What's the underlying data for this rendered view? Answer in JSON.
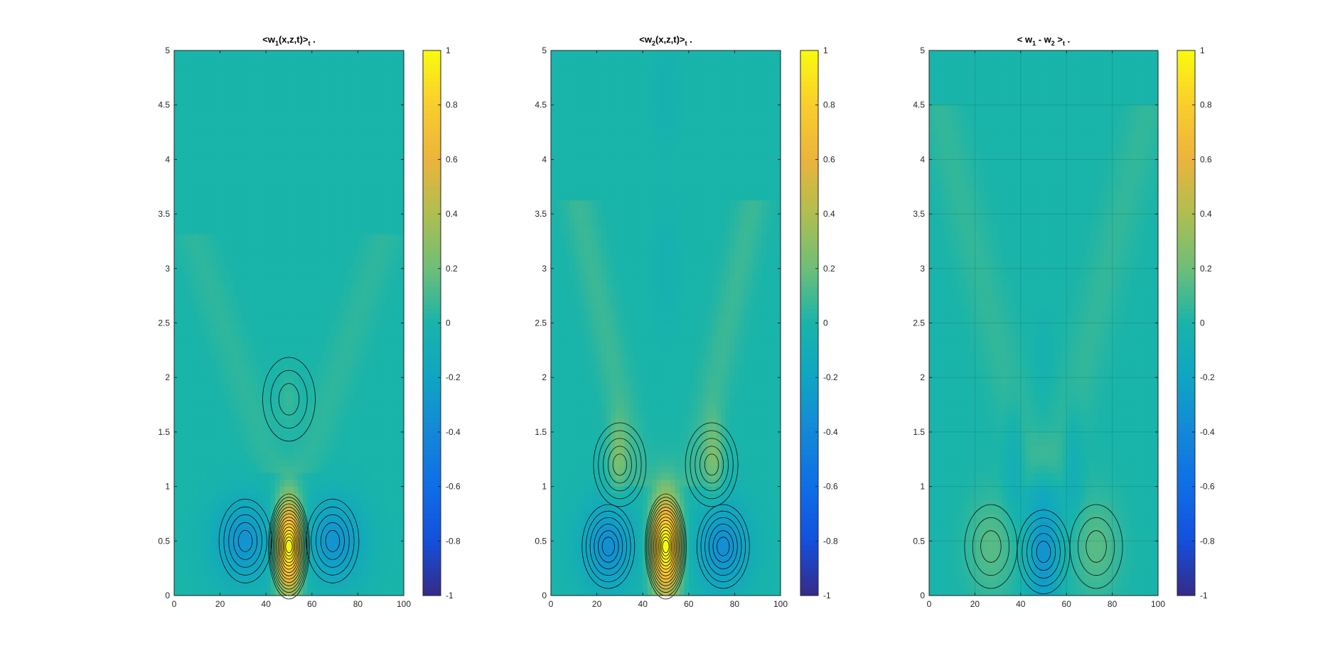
{
  "chart_data": [
    {
      "type": "contour",
      "title": {
        "main": "<w",
        "sub": "1",
        "rest": "(x,z,t)>",
        "tsub": "t",
        "tail": " ."
      },
      "xlim": [
        0,
        100
      ],
      "ylim": [
        0,
        5
      ],
      "xticks": [
        "0",
        "20",
        "40",
        "60",
        "80",
        "100"
      ],
      "yticks": [
        "0",
        "0.5",
        "1",
        "1.5",
        "2",
        "2.5",
        "3",
        "3.5",
        "4",
        "4.5",
        "5"
      ],
      "grid": false,
      "colorbar": {
        "range": [
          -1,
          1
        ],
        "ticks": [
          "-1",
          "-0.8",
          "-0.6",
          "-0.4",
          "-0.2",
          "0",
          "0.2",
          "0.4",
          "0.6",
          "0.8",
          "1"
        ],
        "colormap": "parula"
      },
      "features": [
        {
          "kind": "peak",
          "x": 50,
          "z": 0.45,
          "value": 1.0
        },
        {
          "kind": "trough",
          "x": 31,
          "z": 0.5,
          "value": -0.3
        },
        {
          "kind": "trough",
          "x": 69,
          "z": 0.5,
          "value": -0.3
        },
        {
          "kind": "peak",
          "x": 50,
          "z": 1.8,
          "value": 0.12
        }
      ]
    },
    {
      "type": "contour",
      "title": {
        "main": "<w",
        "sub": "2",
        "rest": "(x,z,t)>",
        "tsub": "t",
        "tail": " ."
      },
      "xlim": [
        0,
        100
      ],
      "ylim": [
        0,
        5
      ],
      "xticks": [
        "0",
        "20",
        "40",
        "60",
        "80",
        "100"
      ],
      "yticks": [
        "0",
        "0.5",
        "1",
        "1.5",
        "2",
        "2.5",
        "3",
        "3.5",
        "4",
        "4.5",
        "5"
      ],
      "grid": false,
      "colorbar": {
        "range": [
          -1,
          1
        ],
        "ticks": [
          "-1",
          "-0.8",
          "-0.6",
          "-0.4",
          "-0.2",
          "0",
          "0.2",
          "0.4",
          "0.6",
          "0.8",
          "1"
        ],
        "colormap": "parula"
      },
      "features": [
        {
          "kind": "peak",
          "x": 50,
          "z": 0.45,
          "value": 1.0
        },
        {
          "kind": "trough",
          "x": 25,
          "z": 0.45,
          "value": -0.35
        },
        {
          "kind": "trough",
          "x": 75,
          "z": 0.45,
          "value": -0.35
        },
        {
          "kind": "peak",
          "x": 30,
          "z": 1.2,
          "value": 0.25
        },
        {
          "kind": "peak",
          "x": 70,
          "z": 1.2,
          "value": 0.25
        }
      ]
    },
    {
      "type": "contour",
      "title": {
        "main": "< w",
        "sub": "1",
        "rest": " - w",
        "sub2": "2",
        "rest2": " >",
        "tsub": "t",
        "tail": " ."
      },
      "xlim": [
        0,
        100
      ],
      "ylim": [
        0,
        5
      ],
      "xticks": [
        "0",
        "20",
        "40",
        "60",
        "80",
        "100"
      ],
      "yticks": [
        "0",
        "0.5",
        "1",
        "1.5",
        "2",
        "2.5",
        "3",
        "3.5",
        "4",
        "4.5",
        "5"
      ],
      "grid": true,
      "colorbar": {
        "range": [
          -1,
          1
        ],
        "ticks": [
          "-1",
          "-0.8",
          "-0.6",
          "-0.4",
          "-0.2",
          "0",
          "0.2",
          "0.4",
          "0.6",
          "0.8",
          "1"
        ],
        "colormap": "parula"
      },
      "features": [
        {
          "kind": "trough",
          "x": 50,
          "z": 0.4,
          "value": -0.3
        },
        {
          "kind": "peak",
          "x": 27,
          "z": 0.45,
          "value": 0.15
        },
        {
          "kind": "peak",
          "x": 73,
          "z": 0.45,
          "value": 0.15
        }
      ]
    }
  ]
}
